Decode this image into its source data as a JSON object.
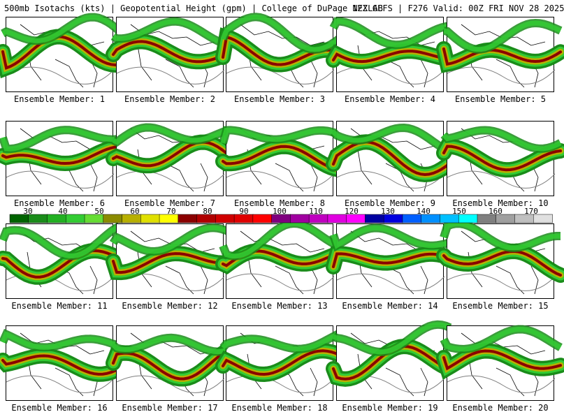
{
  "header": {
    "left": "500mb Isotachs (kts) | Geopotential Height (gpm) | College of DuPage NEXLAB",
    "right": "12Z GEFS | F276 Valid: 00Z FRI NOV 28 2025"
  },
  "colorbar": {
    "labels": [
      "30",
      "40",
      "50",
      "60",
      "70",
      "80",
      "90",
      "100",
      "110",
      "120",
      "130",
      "140",
      "150",
      "160",
      "170"
    ],
    "colors": [
      "#006400",
      "#1a8c1a",
      "#22b022",
      "#33cc33",
      "#66dd33",
      "#8b8b00",
      "#b8b000",
      "#e0e000",
      "#ffff00",
      "#8b0000",
      "#b00000",
      "#d00000",
      "#e00000",
      "#ff0000",
      "#800080",
      "#a000a0",
      "#c000c0",
      "#e000e0",
      "#ff00ff",
      "#0000a0",
      "#0000e0",
      "#0060ff",
      "#0090ff",
      "#00c0ff",
      "#00ffff",
      "#808080",
      "#a0a0a0",
      "#c0c0c0",
      "#e0e0e0"
    ]
  },
  "members": [
    {
      "label": "Ensemble Member: 1"
    },
    {
      "label": "Ensemble Member: 2"
    },
    {
      "label": "Ensemble Member: 3"
    },
    {
      "label": "Ensemble Member: 4"
    },
    {
      "label": "Ensemble Member: 5"
    },
    {
      "label": "Ensemble Member: 6"
    },
    {
      "label": "Ensemble Member: 7"
    },
    {
      "label": "Ensemble Member: 8"
    },
    {
      "label": "Ensemble Member: 9"
    },
    {
      "label": "Ensemble Member: 10"
    },
    {
      "label": "Ensemble Member: 11"
    },
    {
      "label": "Ensemble Member: 12"
    },
    {
      "label": "Ensemble Member: 13"
    },
    {
      "label": "Ensemble Member: 14"
    },
    {
      "label": "Ensemble Member: 15"
    },
    {
      "label": "Ensemble Member: 16"
    },
    {
      "label": "Ensemble Member: 17"
    },
    {
      "label": "Ensemble Member: 18"
    },
    {
      "label": "Ensemble Member: 19"
    },
    {
      "label": "Ensemble Member: 20"
    }
  ]
}
